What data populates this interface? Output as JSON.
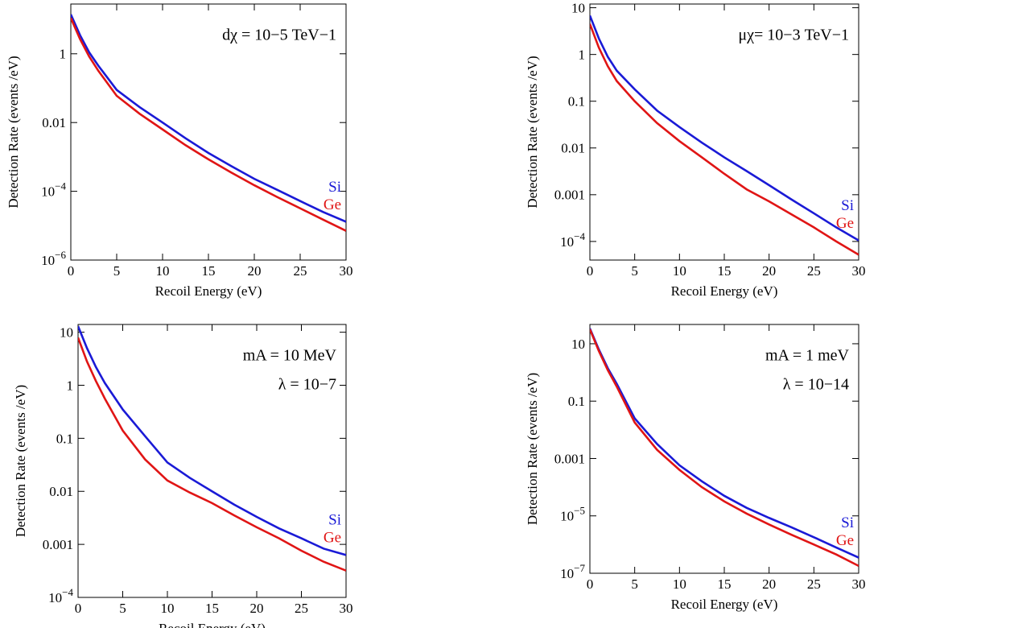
{
  "chart_data": [
    {
      "type": "line",
      "log_y": true,
      "xlabel": "Recoil Energy (eV)",
      "ylabel": "Detection Rate (events /eV)",
      "annotations": [
        "dχ = 10−5 TeV−1"
      ],
      "x": [
        0,
        1,
        2,
        3,
        5,
        7.5,
        10,
        12.5,
        15,
        17.5,
        20,
        22.5,
        25,
        27.5,
        30
      ],
      "xlim": [
        0,
        30
      ],
      "xticks": [
        0,
        5,
        10,
        15,
        20,
        25,
        30
      ],
      "ylim": [
        1e-06,
        28
      ],
      "yticks": [
        {
          "value": 1e-06,
          "label": "10−6"
        },
        {
          "value": 0.0001,
          "label": "10−4"
        },
        0.01,
        1
      ],
      "series": [
        {
          "name": "Si",
          "color": "#1a1ad6",
          "values": [
            14,
            3.5,
            1.1,
            0.45,
            0.089,
            0.028,
            0.01,
            0.0035,
            0.0013,
            0.00054,
            0.00023,
            0.00011,
            5.2e-05,
            2.5e-05,
            1.3e-05
          ]
        },
        {
          "name": "Ge",
          "color": "#e01515",
          "values": [
            11,
            2.7,
            0.83,
            0.32,
            0.06,
            0.018,
            0.0063,
            0.0022,
            0.00085,
            0.00035,
            0.00015,
            6.8e-05,
            3.2e-05,
            1.5e-05,
            7.1e-06
          ]
        }
      ]
    },
    {
      "type": "line",
      "log_y": true,
      "xlabel": "Recoil Energy (eV)",
      "ylabel": "Detection Rate (events /eV)",
      "annotations": [
        "μχ= 10−3 TeV−1"
      ],
      "x": [
        0,
        1,
        2,
        3,
        5,
        7.5,
        10,
        12.5,
        15,
        17.5,
        20,
        22.5,
        25,
        27.5,
        30
      ],
      "xlim": [
        0,
        30
      ],
      "xticks": [
        0,
        5,
        10,
        15,
        20,
        25,
        30
      ],
      "ylim": [
        4e-05,
        12
      ],
      "yticks": [
        {
          "value": 0.0001,
          "label": "10−4"
        },
        0.001,
        0.01,
        0.1,
        1,
        10
      ],
      "series": [
        {
          "name": "Si",
          "color": "#1a1ad6",
          "values": [
            6.8,
            2.2,
            0.89,
            0.45,
            0.18,
            0.063,
            0.028,
            0.013,
            0.0063,
            0.0032,
            0.0016,
            0.00079,
            0.0004,
            0.0002,
            0.000105
          ]
        },
        {
          "name": "Ge",
          "color": "#e01515",
          "values": [
            4.5,
            1.4,
            0.56,
            0.27,
            0.1,
            0.034,
            0.014,
            0.0063,
            0.0028,
            0.0013,
            0.00072,
            0.00038,
            0.0002,
            0.0001,
            5.2e-05
          ]
        }
      ]
    },
    {
      "type": "line",
      "log_y": true,
      "xlabel": "Recoil Energy (eV)",
      "ylabel": "Detection Rate (events /eV)",
      "annotations": [
        "mA = 10  MeV",
        "λ = 10−7"
      ],
      "x": [
        0,
        1,
        2,
        3,
        5,
        7.5,
        10,
        12.5,
        15,
        17.5,
        20,
        22.5,
        25,
        27.5,
        30
      ],
      "xlim": [
        0,
        30
      ],
      "xticks": [
        0,
        5,
        10,
        15,
        20,
        25,
        30
      ],
      "ylim": [
        0.0001,
        14
      ],
      "yticks": [
        {
          "value": 0.0001,
          "label": "10−4"
        },
        0.001,
        0.01,
        0.1,
        1,
        10
      ],
      "series": [
        {
          "name": "Si",
          "color": "#1a1ad6",
          "values": [
            13,
            5,
            2.2,
            1.1,
            0.35,
            0.11,
            0.035,
            0.018,
            0.01,
            0.0056,
            0.0033,
            0.002,
            0.0013,
            0.00083,
            0.00063
          ]
        },
        {
          "name": "Ge",
          "color": "#e01515",
          "values": [
            7.9,
            2.8,
            1.2,
            0.56,
            0.14,
            0.04,
            0.016,
            0.0095,
            0.006,
            0.0035,
            0.0021,
            0.0013,
            0.00076,
            0.00047,
            0.00032
          ]
        }
      ]
    },
    {
      "type": "line",
      "log_y": true,
      "xlabel": "Recoil Energy (eV)",
      "ylabel": "Detection Rate (events /eV)",
      "annotations": [
        "mA = 1  meV",
        "λ = 10−14"
      ],
      "x": [
        0,
        1,
        2,
        3,
        5,
        7.5,
        10,
        12.5,
        15,
        17.5,
        20,
        22.5,
        25,
        27.5,
        30
      ],
      "xlim": [
        0,
        30
      ],
      "xticks": [
        0,
        5,
        10,
        15,
        20,
        25,
        30
      ],
      "ylim": [
        1e-07,
        47
      ],
      "yticks": [
        {
          "value": 1e-07,
          "label": "10−7"
        },
        {
          "value": 1e-05,
          "label": "10−5"
        },
        0.001,
        0.1,
        10
      ],
      "series": [
        {
          "name": "Si",
          "color": "#1a1ad6",
          "values": [
            34,
            6.3,
            1.4,
            0.4,
            0.025,
            0.0032,
            0.00058,
            0.00016,
            5e-05,
            1.9e-05,
            8.5e-06,
            4e-06,
            1.8e-06,
            7.9e-07,
            3.5e-07
          ]
        },
        {
          "name": "Ge",
          "color": "#e01515",
          "values": [
            32,
            5.6,
            1.2,
            0.32,
            0.018,
            0.002,
            0.0004,
            0.0001,
            3.2e-05,
            1.2e-05,
            5e-06,
            2.2e-06,
            1e-06,
            4.5e-07,
            1.8e-07
          ]
        }
      ]
    }
  ]
}
